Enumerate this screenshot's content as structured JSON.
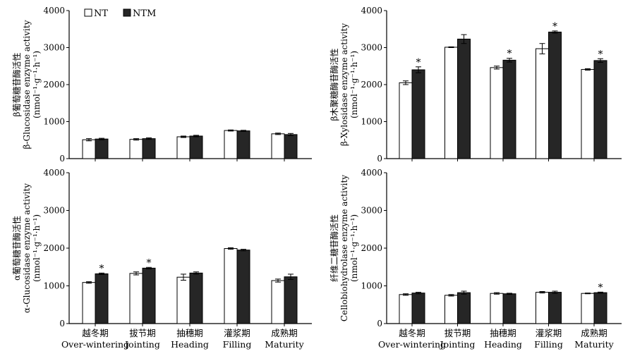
{
  "legend": [
    {
      "name": "NT",
      "color": "#ffffff"
    },
    {
      "name": "NTM",
      "color": "#262626"
    }
  ],
  "colors": {
    "axis": "#000000",
    "nt_fill": "#ffffff",
    "ntm_fill": "#262626"
  },
  "chart_data": [
    {
      "type": "bar",
      "id": "beta-glucosidase",
      "ylabel_cn": "β葡萄糖苷酶活性",
      "ylabel_en": "β-Glucosidase enzyme activity",
      "yunit": "(nmol⁻¹·g⁻¹·h⁻¹)",
      "ylim": [
        0,
        4000
      ],
      "yticks": [
        0,
        1000,
        2000,
        3000,
        4000
      ],
      "categories_cn": [
        "越冬期",
        "拔节期",
        "抽穗期",
        "灌浆期",
        "成熟期"
      ],
      "categories_en": [
        "Over-wintering",
        "Jointing",
        "Heading",
        "Filling",
        "Maturity"
      ],
      "show_category_labels": false,
      "series": [
        {
          "name": "NT",
          "values": [
            510,
            520,
            590,
            760,
            670
          ],
          "errors": [
            30,
            20,
            20,
            15,
            20
          ],
          "sig": [
            false,
            false,
            false,
            false,
            false
          ]
        },
        {
          "name": "NTM",
          "values": [
            530,
            540,
            610,
            750,
            650
          ],
          "errors": [
            20,
            20,
            20,
            15,
            30
          ],
          "sig": [
            false,
            false,
            false,
            false,
            false
          ]
        }
      ]
    },
    {
      "type": "bar",
      "id": "beta-xylosidase",
      "ylabel_cn": "β木聚糖酶苷酶活性",
      "ylabel_en": "β-Xylosidase enzyme activity",
      "yunit": "(nmol⁻¹·g⁻¹·h⁻¹)",
      "ylim": [
        0,
        4000
      ],
      "yticks": [
        0,
        1000,
        2000,
        3000,
        4000
      ],
      "categories_cn": [
        "越冬期",
        "拔节期",
        "抽穗期",
        "灌浆期",
        "成熟期"
      ],
      "categories_en": [
        "Over-wintering",
        "Jointing",
        "Heading",
        "Filling",
        "Maturity"
      ],
      "show_category_labels": false,
      "series": [
        {
          "name": "NT",
          "values": [
            2050,
            3010,
            2460,
            2970,
            2410
          ],
          "errors": [
            50,
            10,
            40,
            140,
            20
          ],
          "sig": [
            false,
            false,
            false,
            false,
            false
          ]
        },
        {
          "name": "NTM",
          "values": [
            2400,
            3230,
            2660,
            3420,
            2650
          ],
          "errors": [
            80,
            120,
            50,
            30,
            50
          ],
          "sig": [
            true,
            false,
            true,
            true,
            true
          ]
        }
      ]
    },
    {
      "type": "bar",
      "id": "alpha-glucosidase",
      "ylabel_cn": "α葡萄糖苷酶活性",
      "ylabel_en": "α-Glucosidase enzyme activity",
      "yunit": "(nmol⁻¹·g⁻¹·h⁻¹)",
      "ylim": [
        0,
        4000
      ],
      "yticks": [
        0,
        1000,
        2000,
        3000,
        4000
      ],
      "categories_cn": [
        "越冬期",
        "拔节期",
        "抽穗期",
        "灌浆期",
        "成熟期"
      ],
      "categories_en": [
        "Over-wintering",
        "Jointing",
        "Heading",
        "Filling",
        "Maturity"
      ],
      "show_category_labels": true,
      "series": [
        {
          "name": "NT",
          "values": [
            1090,
            1330,
            1230,
            1990,
            1140
          ],
          "errors": [
            20,
            40,
            80,
            20,
            40
          ],
          "sig": [
            false,
            false,
            false,
            false,
            false
          ]
        },
        {
          "name": "NTM",
          "values": [
            1320,
            1470,
            1340,
            1950,
            1240
          ],
          "errors": [
            20,
            20,
            30,
            20,
            70
          ],
          "sig": [
            true,
            true,
            false,
            false,
            false
          ]
        }
      ]
    },
    {
      "type": "bar",
      "id": "cellobiohydrolase",
      "ylabel_cn": "纤维二糖苷酶活性",
      "ylabel_en": "Cellobiohydrolase enzyme activity",
      "yunit": "(nmol⁻¹·g⁻¹·h⁻¹)",
      "ylim": [
        0,
        4000
      ],
      "yticks": [
        0,
        1000,
        2000,
        3000,
        4000
      ],
      "categories_cn": [
        "越冬期",
        "拔节期",
        "抽穗期",
        "灌浆期",
        "成熟期"
      ],
      "categories_en": [
        "Over-wintering",
        "Jointing",
        "Heading",
        "Filling",
        "Maturity"
      ],
      "show_category_labels": true,
      "series": [
        {
          "name": "NT",
          "values": [
            770,
            750,
            800,
            830,
            800
          ],
          "errors": [
            20,
            20,
            20,
            20,
            10
          ],
          "sig": [
            false,
            false,
            false,
            false,
            false
          ]
        },
        {
          "name": "NTM",
          "values": [
            810,
            820,
            790,
            830,
            820
          ],
          "errors": [
            20,
            40,
            15,
            30,
            15
          ],
          "sig": [
            false,
            false,
            false,
            false,
            true
          ]
        }
      ]
    }
  ]
}
